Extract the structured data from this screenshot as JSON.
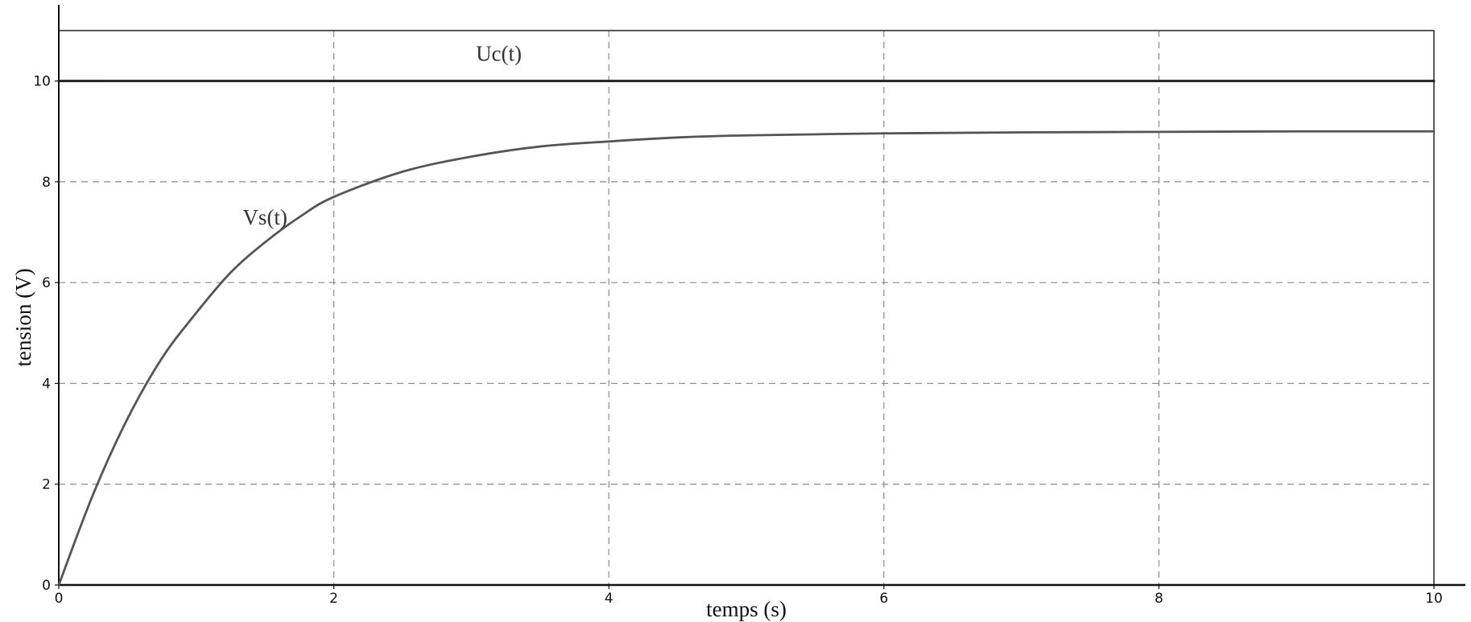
{
  "chart_data": {
    "type": "line",
    "xlabel": "temps (s)",
    "ylabel": "tension (V)",
    "xlim": [
      0,
      10
    ],
    "ylim": [
      0,
      11
    ],
    "xticks": [
      0,
      2,
      4,
      6,
      8,
      10
    ],
    "yticks": [
      0,
      2,
      4,
      6,
      8,
      10
    ],
    "grid": true,
    "series": [
      {
        "name": "Uc(t)",
        "color": "#222222",
        "x": [
          0,
          10
        ],
        "y": [
          10,
          10
        ]
      },
      {
        "name": "Vs(t)",
        "color": "#555555",
        "x": [
          0,
          0.25,
          0.5,
          0.75,
          1,
          1.25,
          1.5,
          1.75,
          2,
          2.5,
          3,
          3.5,
          4,
          4.5,
          5,
          6,
          7,
          8,
          9,
          10
        ],
        "y": [
          0,
          1.8,
          3.3,
          4.5,
          5.4,
          6.2,
          6.8,
          7.3,
          7.7,
          8.2,
          8.5,
          8.7,
          8.8,
          8.88,
          8.92,
          8.96,
          8.98,
          8.99,
          9.0,
          9.0
        ]
      }
    ],
    "annotations": [
      {
        "text": "Uc(t)",
        "x": 3.2,
        "y": 10.4
      },
      {
        "text": "Vs(t)",
        "x": 1.5,
        "y": 7.15
      }
    ]
  }
}
